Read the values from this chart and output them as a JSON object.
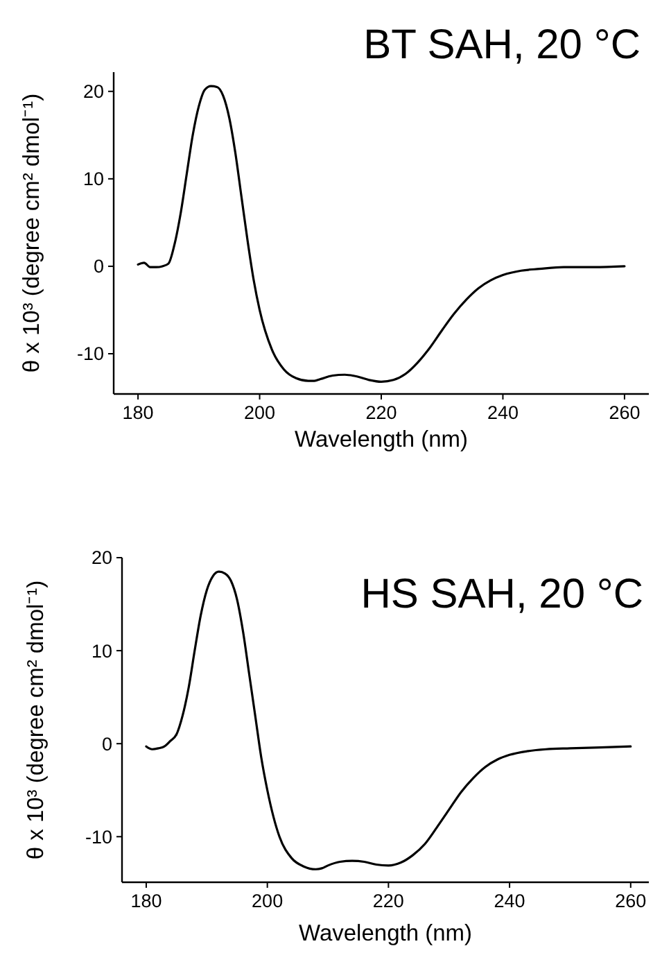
{
  "chart_data": [
    {
      "type": "line",
      "title": "BT SAH, 20 °C",
      "xlabel": "Wavelength (nm)",
      "ylabel": "θ x 10³ (degree cm² dmol⁻¹)",
      "xlim": [
        176,
        264
      ],
      "ylim": [
        -14.6,
        22.2
      ],
      "xticks": [
        180,
        200,
        220,
        240,
        260
      ],
      "yticks": [
        -10,
        0,
        10,
        20
      ],
      "grid": false,
      "marker": "none",
      "line_style": "solid",
      "x": [
        180,
        181,
        182,
        183,
        184,
        185,
        186,
        187,
        188,
        189,
        190,
        191,
        192,
        193,
        194,
        195,
        196,
        197,
        198,
        199,
        200,
        202,
        204,
        206,
        208,
        209,
        210,
        212,
        214,
        216,
        218,
        220,
        222,
        224,
        226,
        228,
        230,
        232,
        234,
        236,
        238,
        240,
        243,
        246,
        250,
        255,
        260
      ],
      "series": [
        {
          "color": "#000000",
          "values": [
            0.2,
            0.4,
            -0.1,
            -0.1,
            0,
            0.3,
            2.5,
            6,
            10.5,
            15,
            18.3,
            20.2,
            20.6,
            20.5,
            19.5,
            17,
            13,
            8,
            3,
            -1.5,
            -5,
            -9.5,
            -11.8,
            -12.8,
            -13.1,
            -13.1,
            -12.9,
            -12.5,
            -12.4,
            -12.6,
            -13,
            -13.2,
            -13,
            -12.3,
            -11,
            -9.3,
            -7.3,
            -5.4,
            -3.8,
            -2.5,
            -1.6,
            -1,
            -0.5,
            -0.3,
            -0.1,
            -0.1,
            0
          ]
        }
      ]
    },
    {
      "type": "line",
      "title": "HS SAH, 20 °C",
      "xlabel": "Wavelength (nm)",
      "ylabel": "θ x 10³ (degree cm² dmol⁻¹)",
      "xlim": [
        176,
        263
      ],
      "ylim": [
        -14.9,
        20
      ],
      "xticks": [
        180,
        200,
        220,
        240,
        260
      ],
      "yticks": [
        -10,
        0,
        10,
        20
      ],
      "grid": false,
      "marker": "none",
      "line_style": "solid",
      "x": [
        180,
        181,
        182,
        183,
        184,
        185,
        186,
        187,
        188,
        189,
        190,
        191,
        192,
        193,
        194,
        195,
        196,
        197,
        198,
        199,
        200,
        202,
        204,
        206,
        208,
        209,
        210,
        212,
        214,
        216,
        218,
        220,
        222,
        224,
        226,
        228,
        230,
        232,
        234,
        236,
        238,
        240,
        243,
        246,
        250,
        255,
        260
      ],
      "series": [
        {
          "color": "#000000",
          "values": [
            -0.3,
            -0.6,
            -0.5,
            -0.3,
            0.3,
            1,
            3,
            6,
            10,
            13.8,
            16.5,
            18,
            18.5,
            18.3,
            17.5,
            15.5,
            12,
            7.5,
            3,
            -1.5,
            -5,
            -10,
            -12.3,
            -13.2,
            -13.5,
            -13.4,
            -13.1,
            -12.7,
            -12.6,
            -12.7,
            -13,
            -13.1,
            -12.8,
            -12,
            -10.8,
            -9,
            -7.1,
            -5.2,
            -3.7,
            -2.5,
            -1.7,
            -1.2,
            -0.8,
            -0.6,
            -0.5,
            -0.4,
            -0.3
          ]
        }
      ]
    }
  ]
}
